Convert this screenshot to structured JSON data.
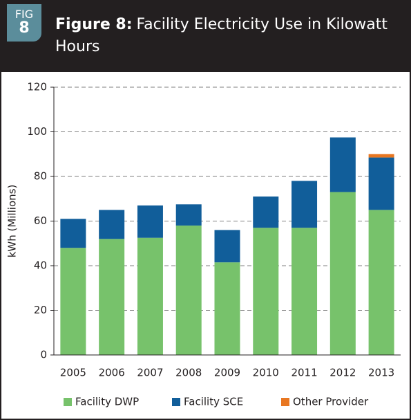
{
  "header": {
    "badge_label": "FIG",
    "badge_number": "8",
    "title_label": "Figure 8:"
  },
  "chart_data": {
    "type": "stacked_bar",
    "title": "Facility Electricity Use in Kilowatt Hours",
    "y_label": "kWh (Millions)",
    "categories": [
      "2005",
      "2006",
      "2007",
      "2008",
      "2009",
      "2010",
      "2011",
      "2012",
      "2013"
    ],
    "series": [
      {
        "name": "Facility DWP",
        "color": "#77c26b",
        "values": [
          48,
          52,
          52.5,
          58,
          41.5,
          57,
          57,
          73,
          65
        ]
      },
      {
        "name": "Facility SCE",
        "color": "#115e9a",
        "values": [
          13,
          13,
          14.5,
          9.5,
          14.5,
          14,
          21,
          24.5,
          23.5
        ]
      },
      {
        "name": "Other Provider",
        "color": "#e87722",
        "values": [
          0,
          0,
          0,
          0,
          0,
          0,
          0,
          0,
          1.5
        ]
      }
    ],
    "ylim": [
      0,
      120
    ],
    "yticks": [
      0,
      20,
      40,
      60,
      80,
      100,
      120
    ],
    "grid": true,
    "legend": "bottom"
  }
}
